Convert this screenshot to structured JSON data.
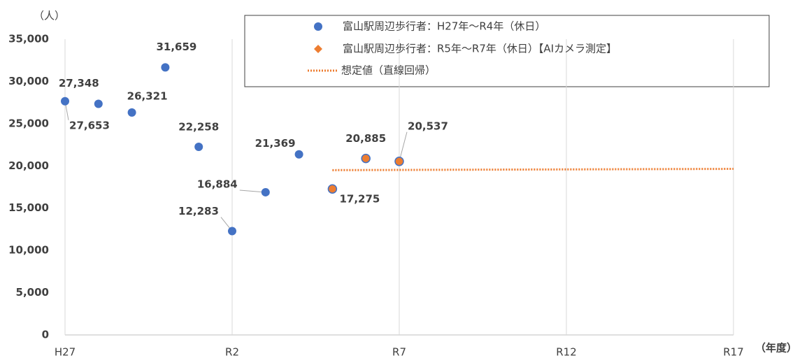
{
  "chart_data": {
    "type": "scatter",
    "y_label": "（人）",
    "x_label": "（年度）",
    "xlim": [
      0,
      20
    ],
    "xticks": [
      {
        "value": 0,
        "label": "H27"
      },
      {
        "value": 5,
        "label": "R2"
      },
      {
        "value": 10,
        "label": "R7"
      },
      {
        "value": 15,
        "label": "R12"
      },
      {
        "value": 20,
        "label": "R17"
      }
    ],
    "ylim": [
      0,
      35000
    ],
    "yticks": [
      0,
      {
        "value": 5000,
        "label": "5,000"
      },
      {
        "value": 10000,
        "label": "10,000"
      },
      {
        "value": 15000,
        "label": "15,000"
      },
      {
        "value": 20000,
        "label": "20,000"
      },
      {
        "value": 25000,
        "label": "25,000"
      },
      {
        "value": 30000,
        "label": "30,000"
      },
      {
        "value": 35000,
        "label": "35,000"
      }
    ],
    "grid": true,
    "series": [
      {
        "name": "富山駅周辺歩行者：H27年～R4年（休日）",
        "color": "#4472c4",
        "marker": "circle",
        "x": [
          0,
          1,
          2,
          3,
          4,
          5,
          6,
          7
        ],
        "values": [
          27653,
          27348,
          26321,
          31659,
          22258,
          12283,
          16884,
          21369
        ],
        "value_labels": [
          "27,653",
          "27,348",
          "26,321",
          "31,659",
          "22,258",
          "12,283",
          "16,884",
          "21,369"
        ]
      },
      {
        "name": "富山駅周辺歩行者：R5年～R7年（休日）【AIカメラ測定】",
        "color": "#ed7d31",
        "marker": "diamond",
        "x": [
          8,
          9,
          10
        ],
        "values": [
          17275,
          20885,
          20537
        ],
        "value_labels": [
          "17,275",
          "20,885",
          "20,537"
        ]
      },
      {
        "name": "想定値（直線回帰）",
        "color": "#ed7d31",
        "style": "dotted",
        "x": [
          8,
          20
        ],
        "values": [
          19500,
          19650
        ]
      }
    ]
  }
}
